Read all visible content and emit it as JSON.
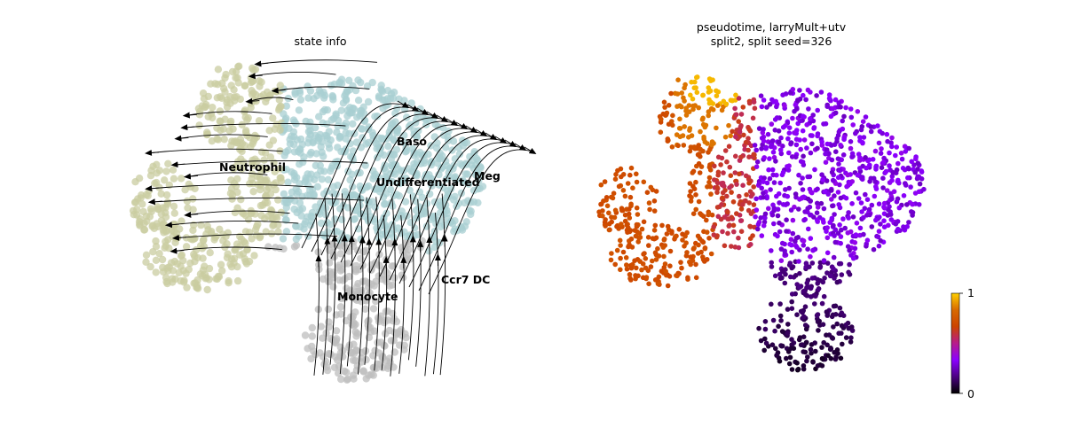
{
  "chart_data": [
    {
      "type": "scatter",
      "title": "state info",
      "xlabel": "",
      "ylabel": "",
      "grid": false,
      "overlay": "velocity stream arrows",
      "state_colors": {
        "Neutrophil": "#c9cca0",
        "Baso": "#a8cfd2",
        "Meg": "#a8cfd2",
        "Undifferentiated": "#a8cfd2",
        "Monocyte": "#bdbdbd",
        "Ccr7 DC": "#bdbdbd"
      },
      "state_labels": [
        "Baso",
        "Meg",
        "Neutrophil",
        "Undifferentiated",
        "Monocyte",
        "Ccr7 DC"
      ]
    },
    {
      "type": "scatter",
      "title": "pseudotime, larryMult+utv\nsplit2, split seed=326",
      "title_lines": [
        "pseudotime, larryMult+utv",
        "split2, split seed=326"
      ],
      "xlabel": "",
      "ylabel": "",
      "grid": false,
      "colormap": "gnuplot",
      "colorbar": {
        "min": 0,
        "max": 1,
        "ticks": [
          "0",
          "1"
        ],
        "stops": [
          "#000000",
          "#4b0082",
          "#8b00ff",
          "#b71c8c",
          "#cc4400",
          "#d86a00",
          "#ffd000"
        ]
      }
    }
  ]
}
